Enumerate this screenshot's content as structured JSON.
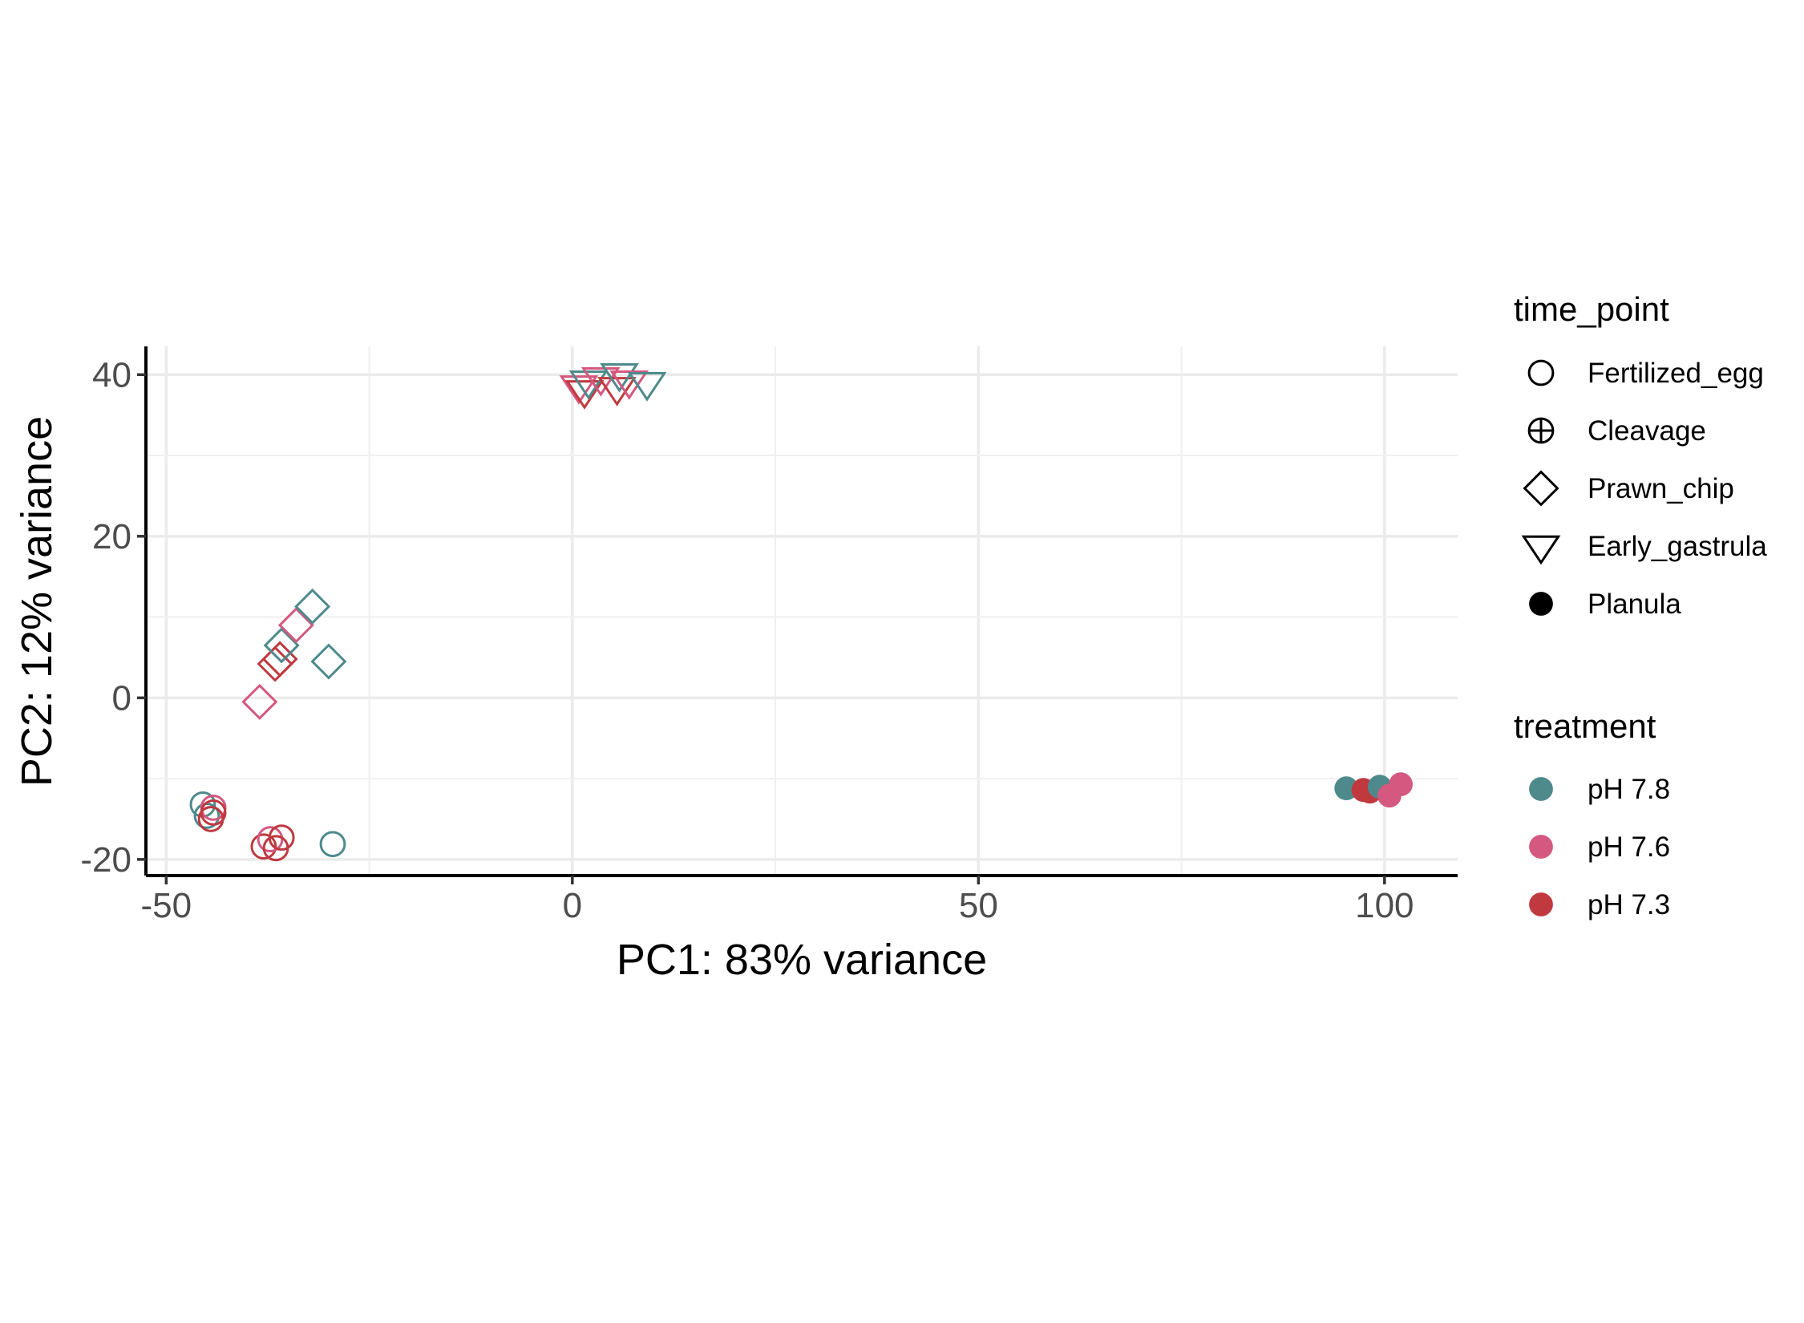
{
  "chart_data": {
    "type": "scatter",
    "title": "",
    "xlabel": "PC1: 83% variance",
    "ylabel": "PC2: 12% variance",
    "xlim": [
      -52.5,
      109
    ],
    "ylim": [
      -22,
      43.5
    ],
    "x_ticks": [
      -50,
      0,
      50,
      100
    ],
    "y_ticks": [
      -20,
      0,
      20,
      40
    ],
    "x_tick_labels": [
      "-50",
      "0",
      "50",
      "100"
    ],
    "y_tick_labels": [
      "-20",
      "0",
      "20",
      "40"
    ],
    "grid": true,
    "legend_position": "right",
    "shape_legend": {
      "title": "time_point",
      "items": [
        {
          "label": "Fertilized_egg",
          "shape": "circle-open"
        },
        {
          "label": "Cleavage",
          "shape": "circle-plus"
        },
        {
          "label": "Prawn_chip",
          "shape": "diamond-open"
        },
        {
          "label": "Early_gastrula",
          "shape": "triangle-down-open"
        },
        {
          "label": "Planula",
          "shape": "circle-filled"
        }
      ]
    },
    "color_legend": {
      "title": "treatment",
      "items": [
        {
          "label": "pH 7.8",
          "color": "#4e8a8c"
        },
        {
          "label": "pH 7.6",
          "color": "#d4587f"
        },
        {
          "label": "pH 7.3",
          "color": "#c0393f"
        }
      ]
    },
    "points": [
      {
        "x": -45.5,
        "y": -13.2,
        "time_point": "Fertilized_egg",
        "treatment": "pH 7.8"
      },
      {
        "x": -45,
        "y": -14.6,
        "time_point": "Fertilized_egg",
        "treatment": "pH 7.8"
      },
      {
        "x": -44.2,
        "y": -13.6,
        "time_point": "Fertilized_egg",
        "treatment": "pH 7.6"
      },
      {
        "x": -44.5,
        "y": -15,
        "time_point": "Fertilized_egg",
        "treatment": "pH 7.3"
      },
      {
        "x": -44.2,
        "y": -14.2,
        "time_point": "Fertilized_egg",
        "treatment": "pH 7.3"
      },
      {
        "x": -38,
        "y": -18.4,
        "time_point": "Fertilized_egg",
        "treatment": "pH 7.3"
      },
      {
        "x": -37.2,
        "y": -17.5,
        "time_point": "Fertilized_egg",
        "treatment": "pH 7.6"
      },
      {
        "x": -36.5,
        "y": -18.6,
        "time_point": "Fertilized_egg",
        "treatment": "pH 7.3"
      },
      {
        "x": -35.8,
        "y": -17.3,
        "time_point": "Fertilized_egg",
        "treatment": "pH 7.3"
      },
      {
        "x": -29.5,
        "y": -18.1,
        "time_point": "Fertilized_egg",
        "treatment": "pH 7.8"
      },
      {
        "x": -38.5,
        "y": -0.5,
        "time_point": "Prawn_chip",
        "treatment": "pH 7.6"
      },
      {
        "x": -36.6,
        "y": 4.2,
        "time_point": "Prawn_chip",
        "treatment": "pH 7.3"
      },
      {
        "x": -36,
        "y": 4.8,
        "time_point": "Prawn_chip",
        "treatment": "pH 7.3"
      },
      {
        "x": -35.8,
        "y": 6.5,
        "time_point": "Prawn_chip",
        "treatment": "pH 7.8"
      },
      {
        "x": -34,
        "y": 9,
        "time_point": "Prawn_chip",
        "treatment": "pH 7.6"
      },
      {
        "x": -32,
        "y": 11.3,
        "time_point": "Prawn_chip",
        "treatment": "pH 7.8"
      },
      {
        "x": -30,
        "y": 4.5,
        "time_point": "Prawn_chip",
        "treatment": "pH 7.8"
      },
      {
        "x": 0.8,
        "y": 38.6,
        "time_point": "Early_gastrula",
        "treatment": "pH 7.6"
      },
      {
        "x": 1.5,
        "y": 38,
        "time_point": "Early_gastrula",
        "treatment": "pH 7.3"
      },
      {
        "x": 2,
        "y": 39.2,
        "time_point": "Early_gastrula",
        "treatment": "pH 7.8"
      },
      {
        "x": 3.5,
        "y": 39.6,
        "time_point": "Early_gastrula",
        "treatment": "pH 7.6"
      },
      {
        "x": 5.5,
        "y": 38.4,
        "time_point": "Early_gastrula",
        "treatment": "pH 7.3"
      },
      {
        "x": 5.8,
        "y": 40.1,
        "time_point": "Early_gastrula",
        "treatment": "pH 7.8"
      },
      {
        "x": 7,
        "y": 39.2,
        "time_point": "Early_gastrula",
        "treatment": "pH 7.6"
      },
      {
        "x": 9.2,
        "y": 39,
        "time_point": "Early_gastrula",
        "treatment": "pH 7.8"
      },
      {
        "x": 95.3,
        "y": -11.2,
        "time_point": "Planula",
        "treatment": "pH 7.8"
      },
      {
        "x": 97.4,
        "y": -11.4,
        "time_point": "Planula",
        "treatment": "pH 7.3"
      },
      {
        "x": 98.2,
        "y": -11.6,
        "time_point": "Planula",
        "treatment": "pH 7.3"
      },
      {
        "x": 99.4,
        "y": -11,
        "time_point": "Planula",
        "treatment": "pH 7.8"
      },
      {
        "x": 100.6,
        "y": -12.1,
        "time_point": "Planula",
        "treatment": "pH 7.6"
      },
      {
        "x": 102,
        "y": -10.7,
        "time_point": "Planula",
        "treatment": "pH 7.6"
      }
    ]
  }
}
